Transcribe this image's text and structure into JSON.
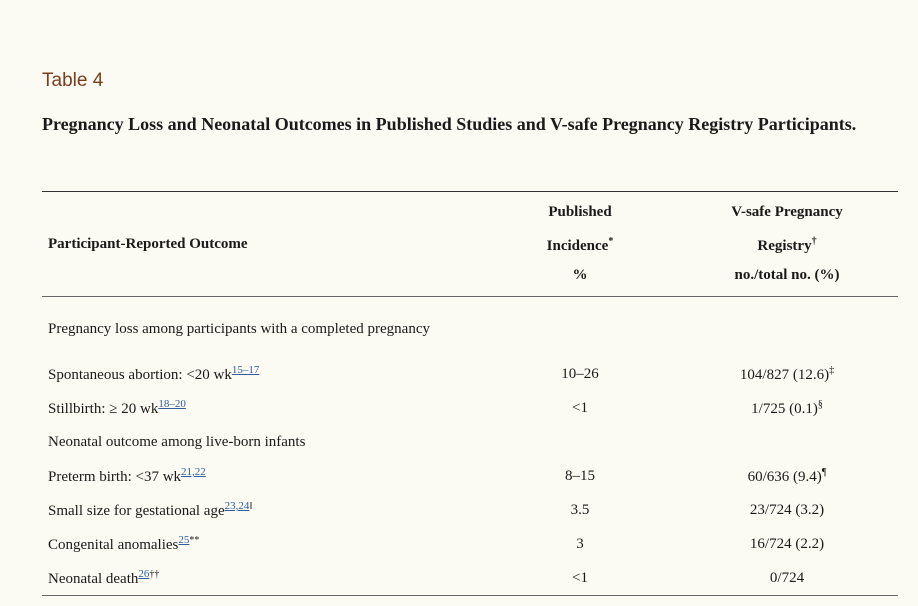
{
  "table_label": "Table 4",
  "caption": "Pregnancy Loss and Neonatal Outcomes in Published Studies and V-safe Pregnancy Registry Participants.",
  "headers": {
    "outcome": "Participant-Reported Outcome",
    "published_line1": "Published",
    "published_line2": "Incidence",
    "published_mark": "*",
    "published_line3": "%",
    "vsafe_line1": "V-safe Pregnancy",
    "vsafe_line2": "Registry",
    "vsafe_mark": "†",
    "vsafe_line3": "no./total no. (%)"
  },
  "rows": [
    {
      "label": "Pregnancy loss among participants with a completed pregnancy",
      "ref": "",
      "mark": "",
      "published": "",
      "vsafe": "",
      "vsafe_mark": ""
    },
    {
      "label": "Spontaneous abortion: <20 wk",
      "ref": "15–17",
      "mark": "",
      "published": "10–26",
      "vsafe": "104/827 (12.6)",
      "vsafe_mark": "‡"
    },
    {
      "label": "Stillbirth: ≥ 20 wk",
      "ref": "18–20",
      "mark": "",
      "published": "<1",
      "vsafe": "1/725 (0.1)",
      "vsafe_mark": "§"
    },
    {
      "label": "Neonatal outcome among live-born infants",
      "ref": "",
      "mark": "",
      "published": "",
      "vsafe": "",
      "vsafe_mark": ""
    },
    {
      "label": "Preterm birth: <37 wk",
      "ref": "21,22",
      "mark": "",
      "published": "8–15",
      "vsafe": "60/636 (9.4)",
      "vsafe_mark": "¶"
    },
    {
      "label": "Small size for gestational age",
      "ref": "23,24",
      "mark": "‖",
      "published": "3.5",
      "vsafe": "23/724 (3.2)",
      "vsafe_mark": ""
    },
    {
      "label": "Congenital anomalies",
      "ref": "25",
      "mark": "**",
      "published": "3",
      "vsafe": "16/724 (2.2)",
      "vsafe_mark": ""
    },
    {
      "label": "Neonatal death",
      "ref": "26",
      "mark": "††",
      "published": "<1",
      "vsafe": "0/724",
      "vsafe_mark": ""
    }
  ]
}
